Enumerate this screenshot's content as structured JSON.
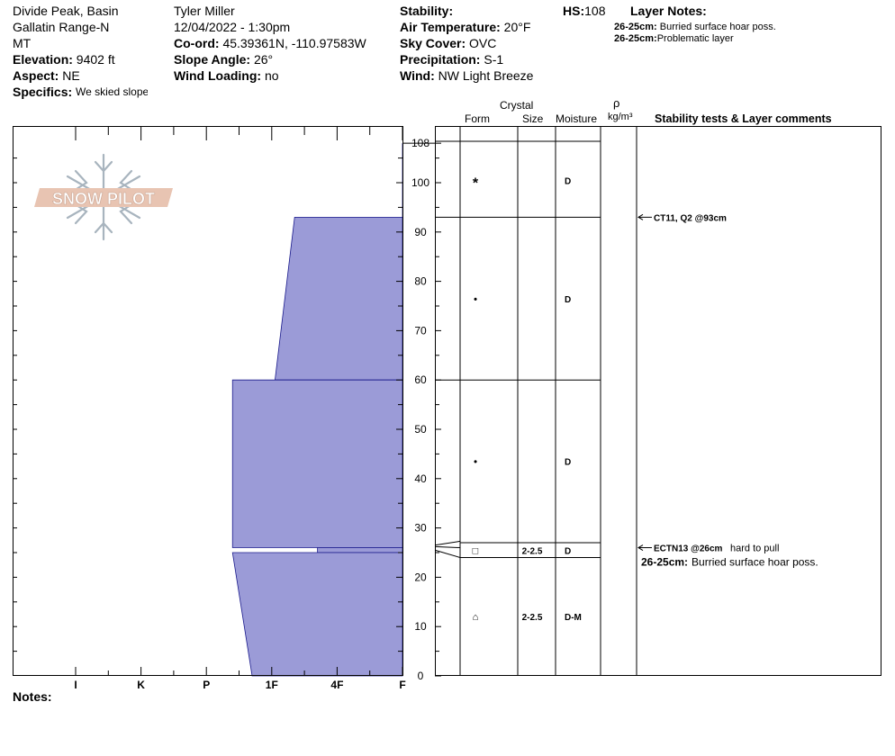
{
  "header": {
    "location": [
      "Divide Peak, Basin",
      "Gallatin Range-N",
      "MT"
    ],
    "elevation_label": "Elevation:",
    "elevation": "9402 ft",
    "aspect_label": "Aspect:",
    "aspect": "NE",
    "specifics_label": "Specifics:",
    "specifics": "We skied slope",
    "observer": "Tyler Miller",
    "datetime": "12/04/2022 - 1:30pm",
    "coord_label": "Co-ord:",
    "coord": "45.39361N, -110.97583W",
    "slope_label": "Slope Angle:",
    "slope": "26°",
    "wind_loading_label": "Wind Loading:",
    "wind_loading": "no",
    "stability_label": "Stability:",
    "stability": "",
    "air_temp_label": "Air Temperature:",
    "air_temp": "20°F",
    "sky_label": "Sky Cover:",
    "sky": "OVC",
    "precip_label": "Precipitation:",
    "precip": "S-1",
    "wind_label": "Wind:",
    "wind": "NW Light Breeze",
    "hs_label": "HS:",
    "hs": "108",
    "layer_notes_title": "Layer Notes:",
    "layer_notes": [
      {
        "range": "26-25cm:",
        "text": "Burried surface hoar poss."
      },
      {
        "range": "26-25cm:",
        "text": "Problematic layer"
      }
    ]
  },
  "logo": {
    "text": "SNOW PILOT"
  },
  "columns": {
    "crystal": "Crystal",
    "form": "Form",
    "size": "Size",
    "moisture": "Moisture",
    "rho": "ρ",
    "density_unit": "kg/m³",
    "comments": "Stability tests & Layer comments"
  },
  "notes_label": "Notes:",
  "chart_data": {
    "type": "bar",
    "title": "",
    "orientation": "horizontal",
    "ylabel": "",
    "ylim": [
      0,
      108
    ],
    "y_ticks": [
      0,
      10,
      20,
      30,
      40,
      50,
      60,
      70,
      80,
      90,
      100,
      108
    ],
    "hardness_scale": [
      "I",
      "K",
      "P",
      "1F",
      "4F",
      "F"
    ],
    "hardness_note": "hardness index: F=0, 4F=1, 1F=2, P=3, K=4, I=5 (larger = harder)",
    "series": [
      {
        "values": [
          {
            "top": 108,
            "bottom": 93,
            "hardness_top": 0,
            "hardness_bottom": 0
          },
          {
            "top": 93,
            "bottom": 60,
            "hardness_top": 1.65,
            "hardness_bottom": 1.95
          },
          {
            "top": 60,
            "bottom": 26,
            "hardness_top": 2.6,
            "hardness_bottom": 2.6
          },
          {
            "top": 26,
            "bottom": 25,
            "hardness_top": 1.3,
            "hardness_bottom": 1.3
          },
          {
            "top": 25,
            "bottom": 0,
            "hardness_top": 2.6,
            "hardness_bottom": 2.3
          }
        ]
      }
    ],
    "layers": [
      {
        "top": 108,
        "bottom": 93,
        "form": "*",
        "size": "",
        "moisture": "D"
      },
      {
        "top": 93,
        "bottom": 60,
        "form": "•",
        "size": "",
        "moisture": "D"
      },
      {
        "top": 60,
        "bottom": 27,
        "form": "•",
        "size": "",
        "moisture": "D"
      },
      {
        "top": 27,
        "bottom": 24,
        "form": "□",
        "size": "2-2.5",
        "moisture": "D"
      },
      {
        "top": 24,
        "bottom": 0,
        "form": "⌂",
        "size": "2-2.5",
        "moisture": "D-M"
      }
    ],
    "stability_tests": [
      {
        "depth": 93,
        "text": "CT11, Q2 @93cm",
        "extra": ""
      },
      {
        "depth": 26,
        "text": "ECTN13 @26cm",
        "extra": "hard to pull"
      }
    ],
    "layer_comments": [
      {
        "depth": 22.5,
        "range": "26-25cm:",
        "text": "Burried surface hoar poss."
      }
    ]
  }
}
